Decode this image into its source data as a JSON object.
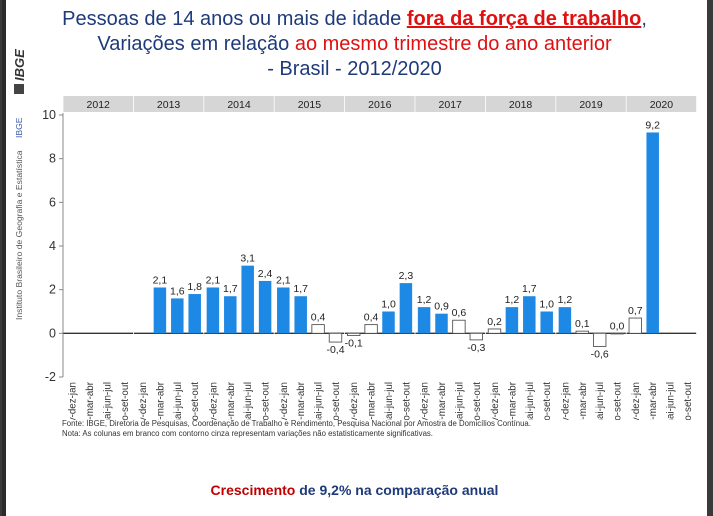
{
  "title": {
    "line1_prefix": "Pessoas de 14 anos ou mais de idade ",
    "line1_highlight": "fora da força de trabalho",
    "line1_suffix": ",",
    "line2_prefix": "Variações em relação ",
    "line2_highlight": "ao mesmo trimestre do ano anterior",
    "line3": "- Brasil - 2012/2020"
  },
  "logo": {
    "text": "IBGE",
    "institution": "Instituto Brasileiro de Geografia e Estatística",
    "institution_short": "IBGE"
  },
  "colors": {
    "significant": "#1e88e5",
    "not_significant": "#ffffff",
    "outline": "#555555",
    "title": "#1f3a7a",
    "highlight": "#e01010"
  },
  "chart_data": {
    "type": "bar",
    "ylim": [
      -2,
      10
    ],
    "yticks": [
      -2,
      0,
      2,
      4,
      6,
      8,
      10
    ],
    "quarters": [
      "nov-dez-jan",
      "fev-mar-abr",
      "mai-jun-jul",
      "ago-set-out"
    ],
    "panels": [
      {
        "year": "2012",
        "values": [
          null,
          null,
          null,
          null
        ],
        "labels": [
          "",
          "",
          "",
          ""
        ],
        "significant": [
          false,
          false,
          false,
          false
        ]
      },
      {
        "year": "2013",
        "values": [
          2.1,
          1.6,
          1.8,
          null
        ],
        "labels": [
          "2,1",
          "1,6",
          "1,8",
          ""
        ],
        "significant": [
          true,
          true,
          true,
          false
        ],
        "shift": 1
      },
      {
        "year": "2014",
        "values": [
          2.1,
          1.7,
          3.1,
          2.4
        ],
        "labels": [
          "2,1",
          "1,7",
          "3,1",
          "2,4"
        ],
        "significant": [
          true,
          true,
          true,
          true
        ]
      },
      {
        "year": "2015",
        "values": [
          2.1,
          1.7,
          0.4,
          -0.4
        ],
        "labels": [
          "2,1",
          "1,7",
          "0,4",
          "-0,4"
        ],
        "significant": [
          true,
          true,
          false,
          false
        ]
      },
      {
        "year": "2016",
        "values": [
          -0.1,
          0.4,
          1.0,
          2.3
        ],
        "labels": [
          "-0,1",
          "0,4",
          "1,0",
          "2,3"
        ],
        "significant": [
          false,
          false,
          true,
          true
        ]
      },
      {
        "year": "2017",
        "values": [
          1.2,
          0.9,
          0.6,
          -0.3
        ],
        "labels": [
          "1,2",
          "0,9",
          "0,6",
          "-0,3"
        ],
        "significant": [
          true,
          true,
          false,
          false
        ]
      },
      {
        "year": "2018",
        "values": [
          0.2,
          1.2,
          1.7,
          1.0
        ],
        "labels": [
          "0,2",
          "1,2",
          "1,7",
          "1,0"
        ],
        "significant": [
          false,
          true,
          true,
          true
        ]
      },
      {
        "year": "2019",
        "values": [
          1.2,
          0.1,
          -0.6,
          0.0
        ],
        "labels": [
          "1,2",
          "0,1",
          "-0,6",
          "0,0"
        ],
        "significant": [
          true,
          false,
          false,
          false
        ]
      },
      {
        "year": "2020",
        "values": [
          0.7,
          9.2,
          null,
          null
        ],
        "labels": [
          "0,7",
          "9,2",
          "",
          ""
        ],
        "significant": [
          false,
          true,
          false,
          false
        ]
      }
    ]
  },
  "source": {
    "line1": "Fonte: IBGE, Diretoria de Pesquisas, Coordenação de Trabalho e Rendimento, Pesquisa Nacional por Amostra de Domicílios Contínua.",
    "line2": "Nota: As colunas em branco com contorno cinza representam variações não estatisticamente significativas."
  },
  "footer": {
    "highlight": "Crescimento",
    "rest": " de 9,2% na comparação anual"
  }
}
